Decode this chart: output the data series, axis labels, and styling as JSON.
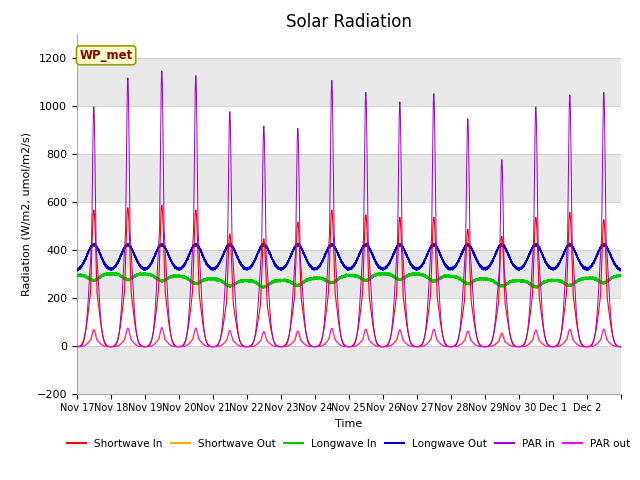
{
  "title": "Solar Radiation",
  "ylabel": "Radiation (W/m2, umol/m2/s)",
  "xlabel": "Time",
  "ylim": [
    -200,
    1300
  ],
  "yticks": [
    -200,
    0,
    200,
    400,
    600,
    800,
    1000,
    1200
  ],
  "num_days": 16,
  "x_tick_labels": [
    "Nov 17",
    "Nov 18",
    "Nov 19",
    "Nov 20",
    "Nov 21",
    "Nov 22",
    "Nov 23",
    "Nov 24",
    "Nov 25",
    "Nov 26",
    "Nov 27",
    "Nov 28",
    "Nov 29",
    "Nov 30",
    "Dec 1",
    "Dec 2"
  ],
  "series": {
    "shortwave_in": {
      "color": "#ff0000",
      "label": "Shortwave In"
    },
    "shortwave_out": {
      "color": "#ffa500",
      "label": "Shortwave Out"
    },
    "longwave_in": {
      "color": "#00cc00",
      "label": "Longwave In"
    },
    "longwave_out": {
      "color": "#0000cc",
      "label": "Longwave Out"
    },
    "par_in": {
      "color": "#9900cc",
      "label": "PAR in"
    },
    "par_out": {
      "color": "#ff00ff",
      "label": "PAR out"
    }
  },
  "par_in_peaks": [
    1000,
    1120,
    1150,
    1130,
    980,
    920,
    910,
    1110,
    1060,
    1020,
    1055,
    950,
    780,
    1000,
    1050,
    1060
  ],
  "sw_in_peaks": [
    570,
    580,
    590,
    570,
    470,
    450,
    520,
    570,
    550,
    540,
    540,
    490,
    460,
    540,
    560,
    530
  ],
  "annotation_text": "WP_met",
  "background_color": "#ffffff",
  "title_fontsize": 12,
  "label_fontsize": 8,
  "tick_fontsize": 8
}
